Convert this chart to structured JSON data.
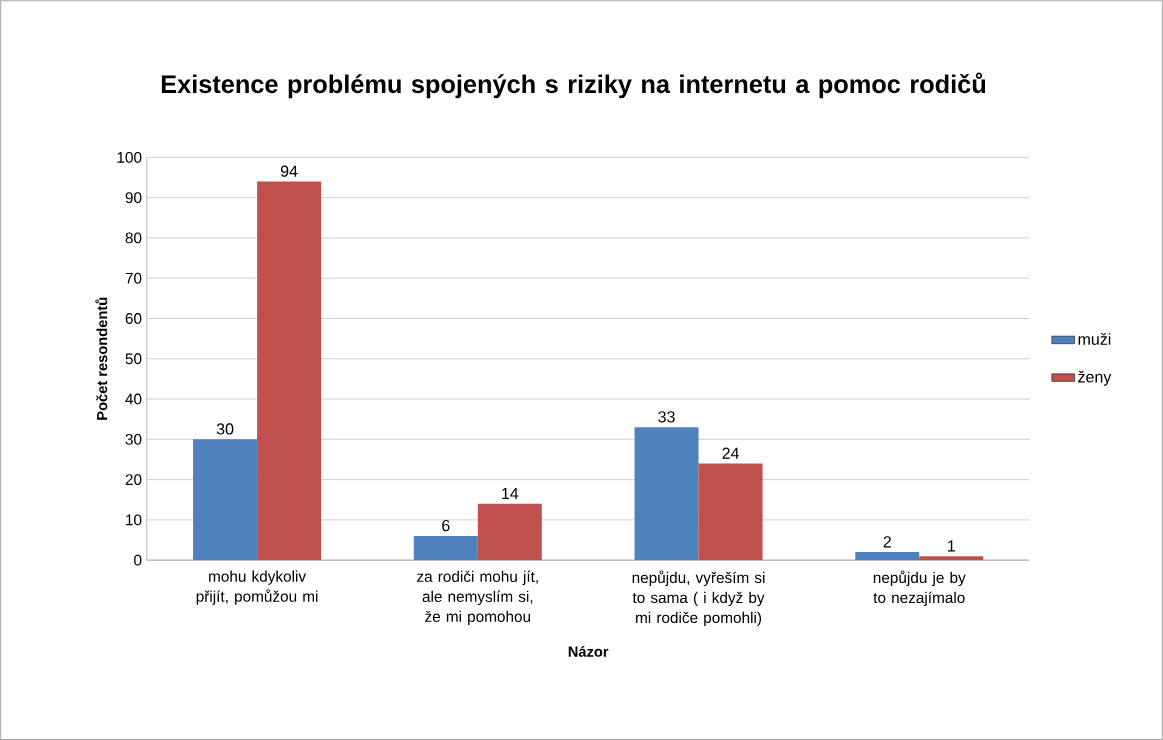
{
  "chart_data": {
    "type": "bar",
    "title": "Existence problému spojených s riziky na internetu a pomoc rodičů",
    "xlabel": "Názor",
    "ylabel": "Počet resondentů",
    "categories": [
      "mohu kdykoliv přijít, pomůžou mi",
      "za rodiči mohu jít, ale nemyslím si, že mi pomohou",
      "nepůjdu, vyřeším si to sama ( i když by mi rodiče pomohli)",
      "nepůjdu je by to nezajímalo"
    ],
    "series": [
      {
        "name": "muži",
        "color": "#4f81bd",
        "values": [
          30,
          6,
          33,
          2
        ]
      },
      {
        "name": "ženy",
        "color": "#c0504d",
        "values": [
          94,
          14,
          24,
          1
        ]
      }
    ],
    "ylim": [
      0,
      100
    ],
    "yticks": [
      0,
      10,
      20,
      30,
      40,
      50,
      60,
      70,
      80,
      90,
      100
    ],
    "grid": "y",
    "legend": "right",
    "data_labels": true
  }
}
